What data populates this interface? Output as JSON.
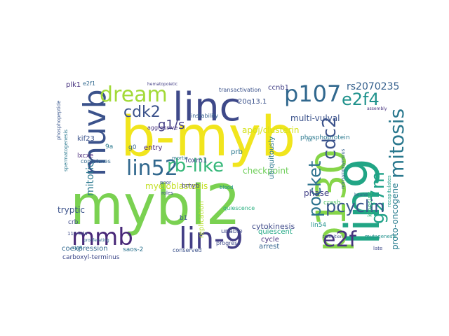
{
  "word_cloud": {
    "words": [
      {
        "text": "b-myb",
        "color": "#f1e51d"
      },
      {
        "text": "mybl2",
        "color": "#7ad151"
      },
      {
        "text": "lin9",
        "color": "#21a585"
      },
      {
        "text": "linc",
        "color": "#3e4989"
      },
      {
        "text": "p130",
        "color": "#86d549"
      },
      {
        "text": "muvb",
        "color": "#3b528b"
      },
      {
        "text": "lin-9",
        "color": "#433e85"
      },
      {
        "text": "mmb",
        "color": "#482878"
      },
      {
        "text": "dream",
        "color": "#a2da37"
      },
      {
        "text": "p107",
        "color": "#31688e"
      },
      {
        "text": "pocket",
        "color": "#2c728e"
      },
      {
        "text": "cdc2",
        "color": "#3b528b"
      },
      {
        "text": "mitosis",
        "color": "#2a788e"
      },
      {
        "text": "lin52",
        "color": "#31688e"
      },
      {
        "text": "rb-like",
        "color": "#35b779"
      },
      {
        "text": "e2f4",
        "color": "#20928c"
      },
      {
        "text": "g27m",
        "color": "#1fa187"
      },
      {
        "text": "e2f",
        "color": "#46337e"
      },
      {
        "text": "cdk2",
        "color": "#3b528b"
      },
      {
        "text": "pcyclin",
        "color": "#39568c"
      },
      {
        "text": "g1/s",
        "color": "#433e85"
      },
      {
        "text": "mitotic",
        "color": "#2a788e"
      },
      {
        "text": "rs2070235",
        "color": "#35608d"
      },
      {
        "text": "myeloblastosis",
        "color": "#c2df23"
      },
      {
        "text": "apoj/clusterin",
        "color": "#d5e21a"
      },
      {
        "text": "proto-oncogene",
        "color": "#287c8e"
      },
      {
        "text": "checkpoint",
        "color": "#6ece58"
      },
      {
        "text": "cytokinesis",
        "color": "#3e4989"
      },
      {
        "text": "phase",
        "color": "#424086"
      },
      {
        "text": "multi-vulval",
        "color": "#3b528b"
      },
      {
        "text": "ubiquitously",
        "color": "#2a788e"
      },
      {
        "text": "20q13.1",
        "color": "#3b528b"
      },
      {
        "text": "tryptic",
        "color": "#3b528b"
      },
      {
        "text": "ccnb1",
        "color": "#424086"
      },
      {
        "text": "entry",
        "color": "#482475"
      },
      {
        "text": "prb",
        "color": "#2a788e"
      },
      {
        "text": "foxm1",
        "color": "#3e4989"
      },
      {
        "text": "cycle",
        "color": "#46327e"
      },
      {
        "text": "arrest",
        "color": "#33638d"
      },
      {
        "text": "quiescent",
        "color": "#22a884"
      },
      {
        "text": "lin54",
        "color": "#21918c"
      },
      {
        "text": "crash",
        "color": "#52c569"
      },
      {
        "text": "coexpression",
        "color": "#31688e"
      },
      {
        "text": "carboxyl-terminus",
        "color": "#3e4989"
      },
      {
        "text": "saos-2",
        "color": "#2c728e"
      },
      {
        "text": "kif23",
        "color": "#3b528b"
      },
      {
        "text": "lxcxe",
        "color": "#482878"
      },
      {
        "text": "instability",
        "color": "#35608d"
      },
      {
        "text": "aggressive",
        "color": "#46327e"
      },
      {
        "text": "phosphoprotein",
        "color": "#2a788e"
      },
      {
        "text": "kinesins",
        "color": "#35b779"
      },
      {
        "text": "unable",
        "color": "#3e4989"
      },
      {
        "text": "replication",
        "color": "#b5de2b"
      },
      {
        "text": "bmyb",
        "color": "#433e85"
      },
      {
        "text": "crb",
        "color": "#3e4989"
      },
      {
        "text": "conserved",
        "color": "#3b528b"
      },
      {
        "text": "progress",
        "color": "#3e4989"
      },
      {
        "text": "transactivation",
        "color": "#3b528b"
      },
      {
        "text": "complexes",
        "color": "#31688e"
      },
      {
        "text": "quiescence",
        "color": "#29af7f"
      },
      {
        "text": "g0",
        "color": "#33638d"
      },
      {
        "text": "9a",
        "color": "#2a788e"
      },
      {
        "text": "b1",
        "color": "#3b528b"
      },
      {
        "text": "plk1",
        "color": "#46327e"
      },
      {
        "text": "e2f1",
        "color": "#31688e"
      },
      {
        "text": "mutagenesis",
        "color": "#21918c"
      },
      {
        "text": "recapitulates",
        "color": "#1f9e89"
      },
      {
        "text": "110-kda",
        "color": "#3e4989"
      },
      {
        "text": "poor",
        "color": "#3b528b"
      },
      {
        "text": "mortic",
        "color": "#2c728e"
      },
      {
        "text": "phosphopeptide",
        "color": "#39568c"
      },
      {
        "text": "spermatogenesis",
        "color": "#2a788e"
      },
      {
        "text": "hematopoietic",
        "color": "#433e85"
      },
      {
        "text": "proliferating",
        "color": "#31688e"
      },
      {
        "text": "roles",
        "color": "#3b528b"
      },
      {
        "text": "blood",
        "color": "#20928c"
      },
      {
        "text": "nonsynonymous",
        "color": "#35608d"
      },
      {
        "text": "assembly",
        "color": "#46327e"
      },
      {
        "text": "transition",
        "color": "#3b528b"
      },
      {
        "text": "bound",
        "color": "#31688e"
      },
      {
        "text": "late",
        "color": "#3e4989"
      },
      {
        "text": "rbl",
        "color": "#2a788e"
      },
      {
        "text": "sig8",
        "color": "#2c728e"
      }
    ]
  }
}
